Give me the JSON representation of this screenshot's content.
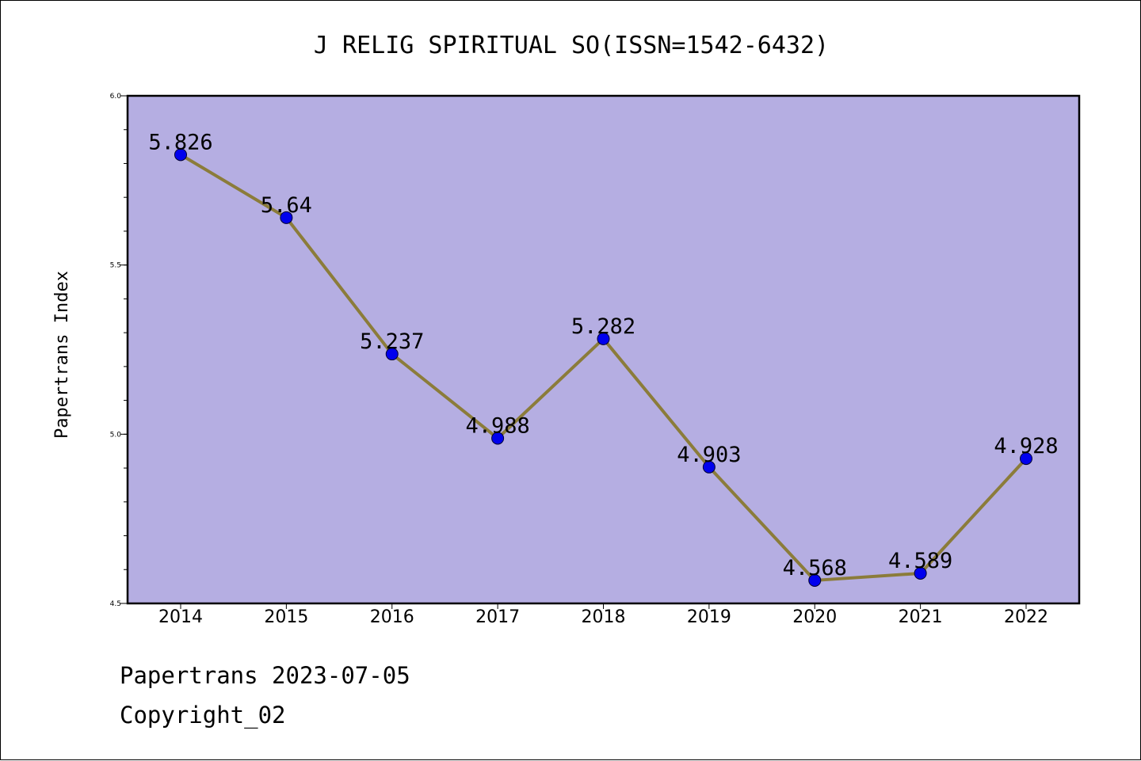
{
  "chart_data": {
    "type": "line",
    "title": "J RELIG SPIRITUAL SO(ISSN=1542-6432)",
    "xlabel": "",
    "ylabel": "Papertrans Index",
    "ylim": [
      4.5,
      6.0
    ],
    "yticks": [
      "6.0",
      "5.5",
      "5.0",
      "4.5"
    ],
    "categories": [
      "2014",
      "2015",
      "2016",
      "2017",
      "2018",
      "2019",
      "2020",
      "2021",
      "2022"
    ],
    "series": [
      {
        "values": [
          5.826,
          5.64,
          5.237,
          4.988,
          5.282,
          4.903,
          4.568,
          4.589,
          4.928
        ],
        "labels": [
          "5.826",
          "5.64",
          "5.237",
          "4.988",
          "5.282",
          "4.903",
          "4.568",
          "4.589",
          "4.928"
        ]
      }
    ],
    "colors": {
      "plot_background": "#b5aee2",
      "line": "#8b7c3a",
      "marker": "#0000ee"
    },
    "grid": false
  },
  "footer": {
    "line1": "Papertrans 2023-07-05",
    "line2": "Copyright_02"
  }
}
